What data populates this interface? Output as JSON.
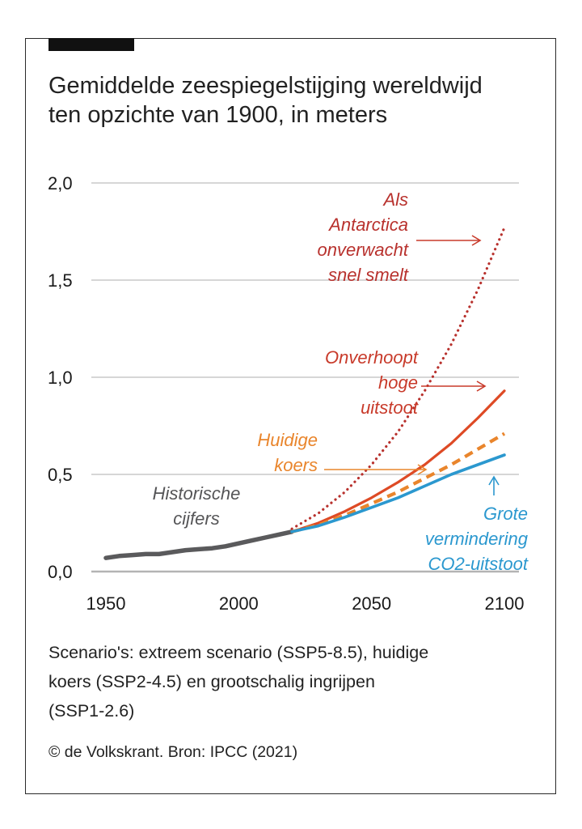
{
  "header": {
    "title_lines": [
      "Gemiddelde zeespiegelstijging wereldwijd",
      "ten opzichte van 1900, in meters"
    ]
  },
  "caption": {
    "lines": [
      "Scenario's: extreem scenario (SSP5-8.5), huidige",
      "koers (SSP2-4.5) en grootschalig ingrijpen",
      "(SSP1-2.6)"
    ]
  },
  "credit": "© de Volkskrant. Bron: IPCC (2021)",
  "colors": {
    "historical": "#5a5a5c",
    "extreme": "#de4a25",
    "antarctica": "#b8312d",
    "current": "#e9852c",
    "mitigation": "#2b98cf",
    "grid": "#c8c8c8"
  },
  "chart_data": {
    "type": "line",
    "xlim": [
      1950,
      2100
    ],
    "ylim": [
      0,
      2.0
    ],
    "xticks": [
      "1950",
      "2000",
      "2050",
      "2100"
    ],
    "yticks": [
      "0,0",
      "0,5",
      "1,0",
      "1,5",
      "2,0"
    ],
    "grid": true,
    "series": [
      {
        "key": "historical",
        "style": "solid-thick",
        "x": [
          1950,
          1955,
          1960,
          1965,
          1970,
          1975,
          1980,
          1985,
          1990,
          1995,
          2000,
          2005,
          2010,
          2015,
          2020
        ],
        "y": [
          0.07,
          0.08,
          0.085,
          0.09,
          0.09,
          0.1,
          0.11,
          0.115,
          0.12,
          0.13,
          0.145,
          0.16,
          0.175,
          0.19,
          0.205
        ]
      },
      {
        "key": "antarctica",
        "style": "dotted",
        "x": [
          2020,
          2030,
          2040,
          2050,
          2060,
          2070,
          2080,
          2090,
          2100
        ],
        "y": [
          0.22,
          0.3,
          0.41,
          0.55,
          0.72,
          0.93,
          1.17,
          1.45,
          1.77
        ]
      },
      {
        "key": "extreme",
        "style": "solid",
        "x": [
          2020,
          2030,
          2040,
          2050,
          2060,
          2070,
          2080,
          2090,
          2100
        ],
        "y": [
          0.205,
          0.25,
          0.31,
          0.38,
          0.46,
          0.55,
          0.66,
          0.79,
          0.93
        ]
      },
      {
        "key": "current",
        "style": "dashed",
        "x": [
          2020,
          2030,
          2040,
          2050,
          2060,
          2070,
          2080,
          2090,
          2100
        ],
        "y": [
          0.205,
          0.24,
          0.29,
          0.35,
          0.41,
          0.48,
          0.55,
          0.63,
          0.71
        ]
      },
      {
        "key": "mitigation",
        "style": "solid",
        "x": [
          2020,
          2030,
          2040,
          2050,
          2060,
          2070,
          2080,
          2090,
          2100
        ],
        "y": [
          0.205,
          0.235,
          0.28,
          0.33,
          0.38,
          0.44,
          0.5,
          0.55,
          0.6
        ]
      }
    ],
    "annotations": [
      {
        "key": "antarctica",
        "lines": [
          "Als",
          "Antarctica",
          "onverwacht",
          "snel smelt"
        ]
      },
      {
        "key": "extreme",
        "lines": [
          "Onverhoopt",
          "hoge",
          "uitstoot"
        ]
      },
      {
        "key": "current",
        "lines": [
          "Huidige",
          "koers"
        ]
      },
      {
        "key": "historical",
        "lines": [
          "Historische",
          "cijfers"
        ]
      },
      {
        "key": "mitigation",
        "lines": [
          "Grote",
          "vermindering",
          "CO2-uitstoot"
        ]
      }
    ]
  }
}
